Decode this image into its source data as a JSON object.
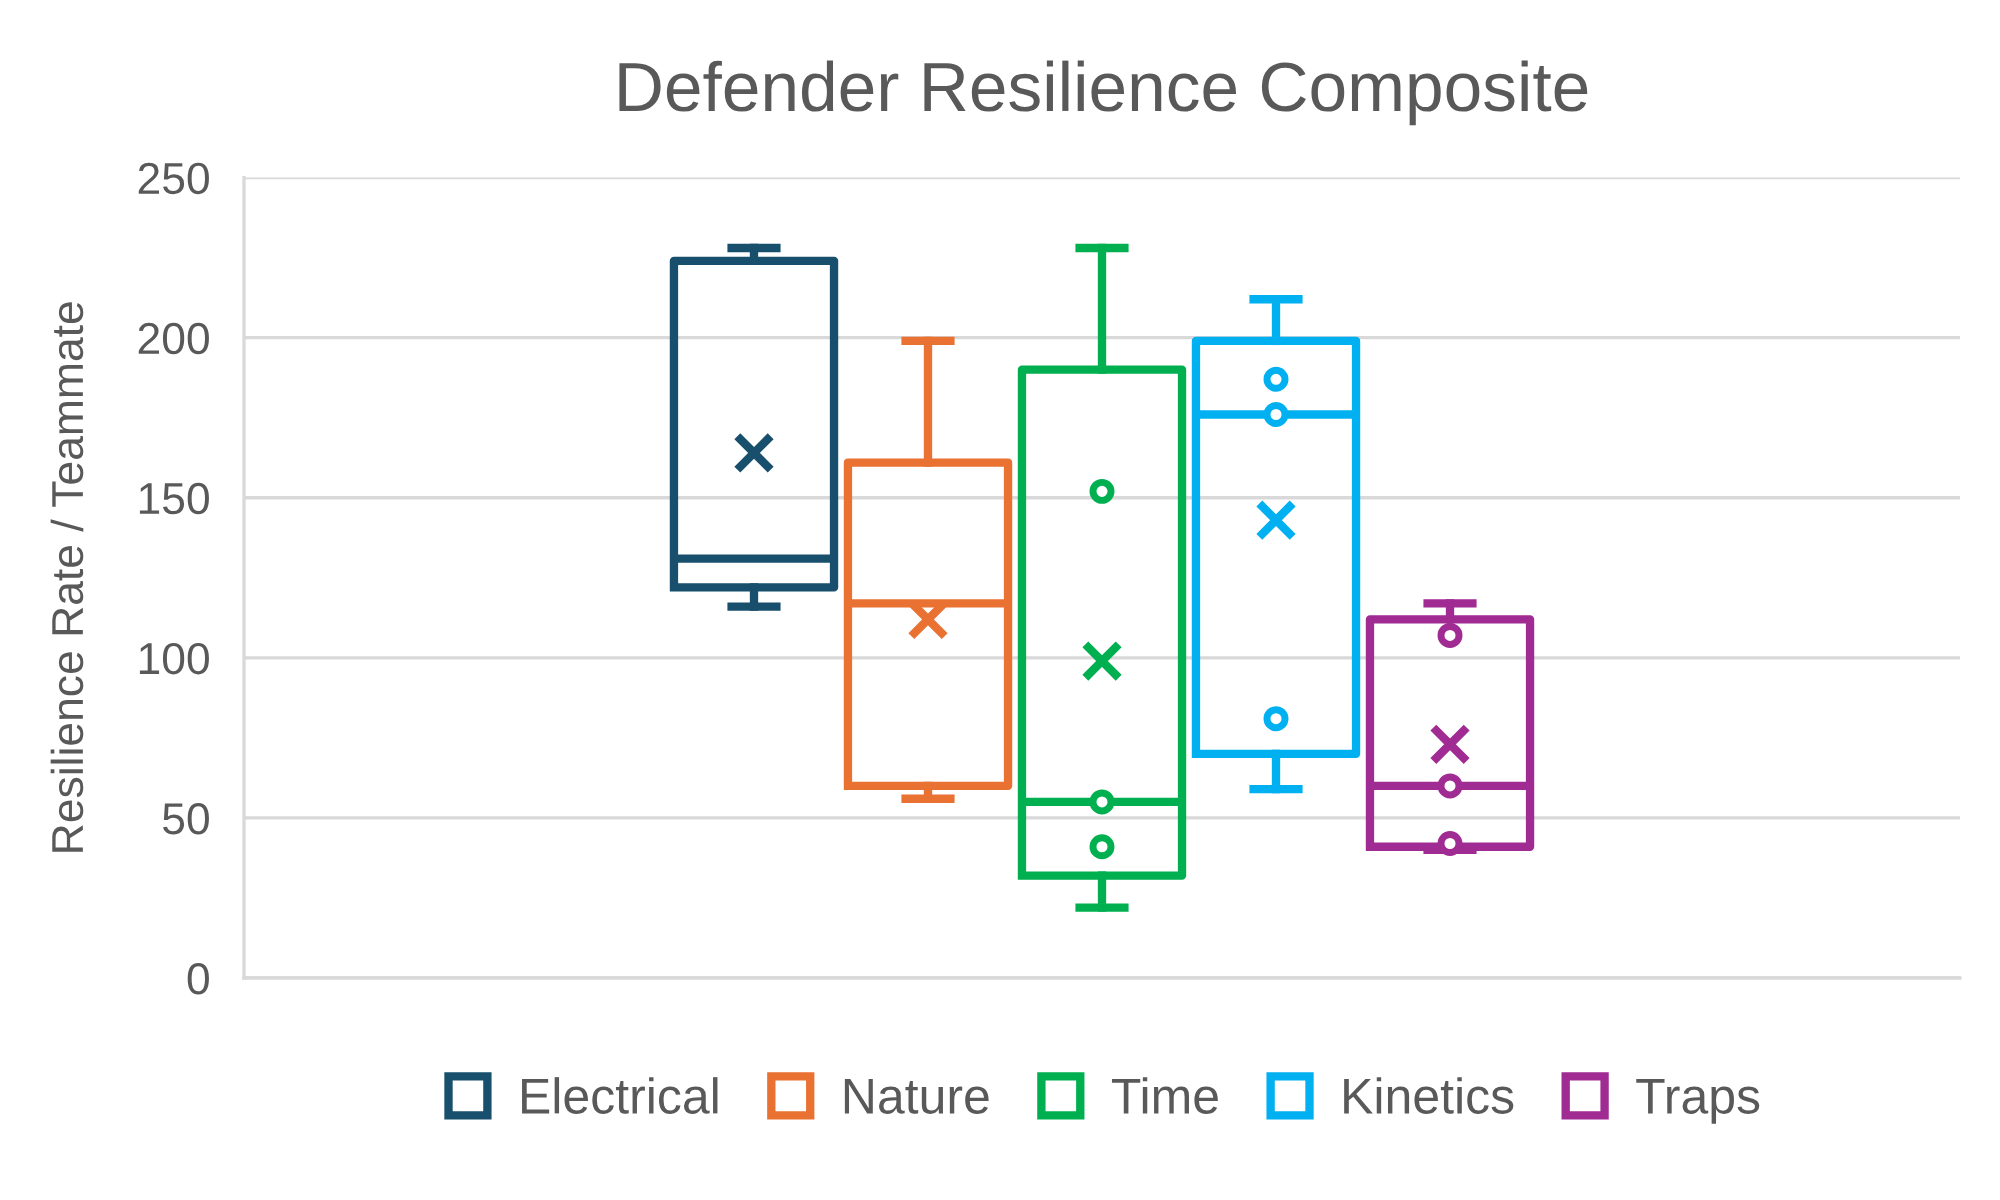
{
  "chart_data": {
    "type": "box",
    "title": "Defender Resilience Composite",
    "ylabel": "Resilience Rate / Teammate",
    "categories": [
      null
    ],
    "ylim": [
      0,
      250
    ],
    "yticks": [
      0,
      50,
      100,
      150,
      200,
      250
    ],
    "grid": "y",
    "legend": "bottom",
    "tick_labels": "y",
    "series": [
      {
        "name": "Electrical",
        "color": "#174f6d",
        "boxes": [
          {
            "low": 116,
            "q1": 122,
            "median": 131,
            "q3": 224,
            "high": 228,
            "mean": 164
          }
        ]
      },
      {
        "name": "Nature",
        "color": "#e97132",
        "boxes": [
          {
            "low": 56,
            "q1": 60,
            "median": 117,
            "q3": 161,
            "high": 199,
            "mean": 112
          }
        ]
      },
      {
        "name": "Time",
        "color": "#00b050",
        "boxes": [
          {
            "low": 22,
            "q1": 32,
            "median": 55,
            "q3": 190,
            "high": 228,
            "mean": 99
          }
        ]
      },
      {
        "type": "scatter",
        "color": "#00b050",
        "marker": "circle",
        "x": [
          null,
          null,
          null
        ],
        "values": [
          152,
          55,
          41
        ]
      },
      {
        "name": "Kinetics",
        "color": "#00b0f0",
        "boxes": [
          {
            "low": 59,
            "q1": 70,
            "median": 176,
            "q3": 199,
            "high": 212,
            "mean": 143
          }
        ]
      },
      {
        "type": "scatter",
        "color": "#00b0f0",
        "marker": "circle",
        "x": [
          null,
          null,
          null
        ],
        "values": [
          187,
          176,
          81
        ]
      },
      {
        "name": "Traps",
        "color": "#a02b93",
        "boxes": [
          {
            "low": 40,
            "q1": 41,
            "median": 60,
            "q3": 112,
            "high": 117,
            "mean": 73
          }
        ]
      },
      {
        "type": "scatter",
        "color": "#a02b93",
        "marker": "circle",
        "x": [
          null,
          null,
          null
        ],
        "values": [
          107,
          60,
          42
        ]
      }
    ]
  }
}
